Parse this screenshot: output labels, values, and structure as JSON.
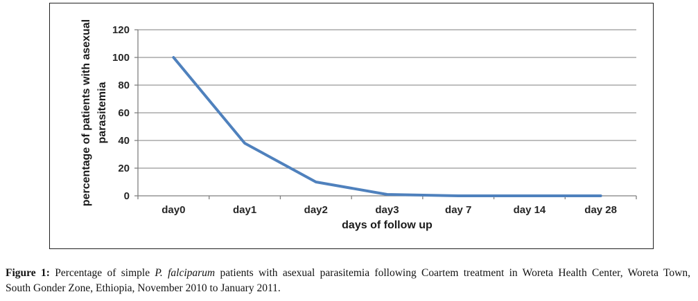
{
  "chart_data": {
    "type": "line",
    "title": "",
    "categories": [
      "day0",
      "day1",
      "day2",
      "day3",
      "day 7",
      "day 14",
      "day 28"
    ],
    "values": [
      100,
      38,
      10,
      1,
      0,
      0,
      0
    ],
    "xlabel": "days of follow up",
    "ylabel": "percentage of patients with asexual parasitemia",
    "ylabel_lines": [
      "percentage of patients with asexual",
      "parasitemia"
    ],
    "ylim": [
      0,
      120
    ],
    "yticks": [
      0,
      20,
      40,
      60,
      80,
      100,
      120
    ],
    "grid": true,
    "legend": "none",
    "colors": {
      "line": "#4F81BD",
      "gridline": "#989898",
      "axis": "#7f7f7f",
      "tick_label": "#262626",
      "frame_border": "#1f1f1f"
    }
  },
  "caption": {
    "label": "Figure 1:",
    "before_italic": " Percentage of simple ",
    "italic": "P. falciparum",
    "after_italic": " patients with asexual parasitemia following Coartem treatment in Woreta Health Center, Woreta Town,",
    "line2": "South Gonder Zone, Ethiopia, November 2010 to January 2011."
  }
}
